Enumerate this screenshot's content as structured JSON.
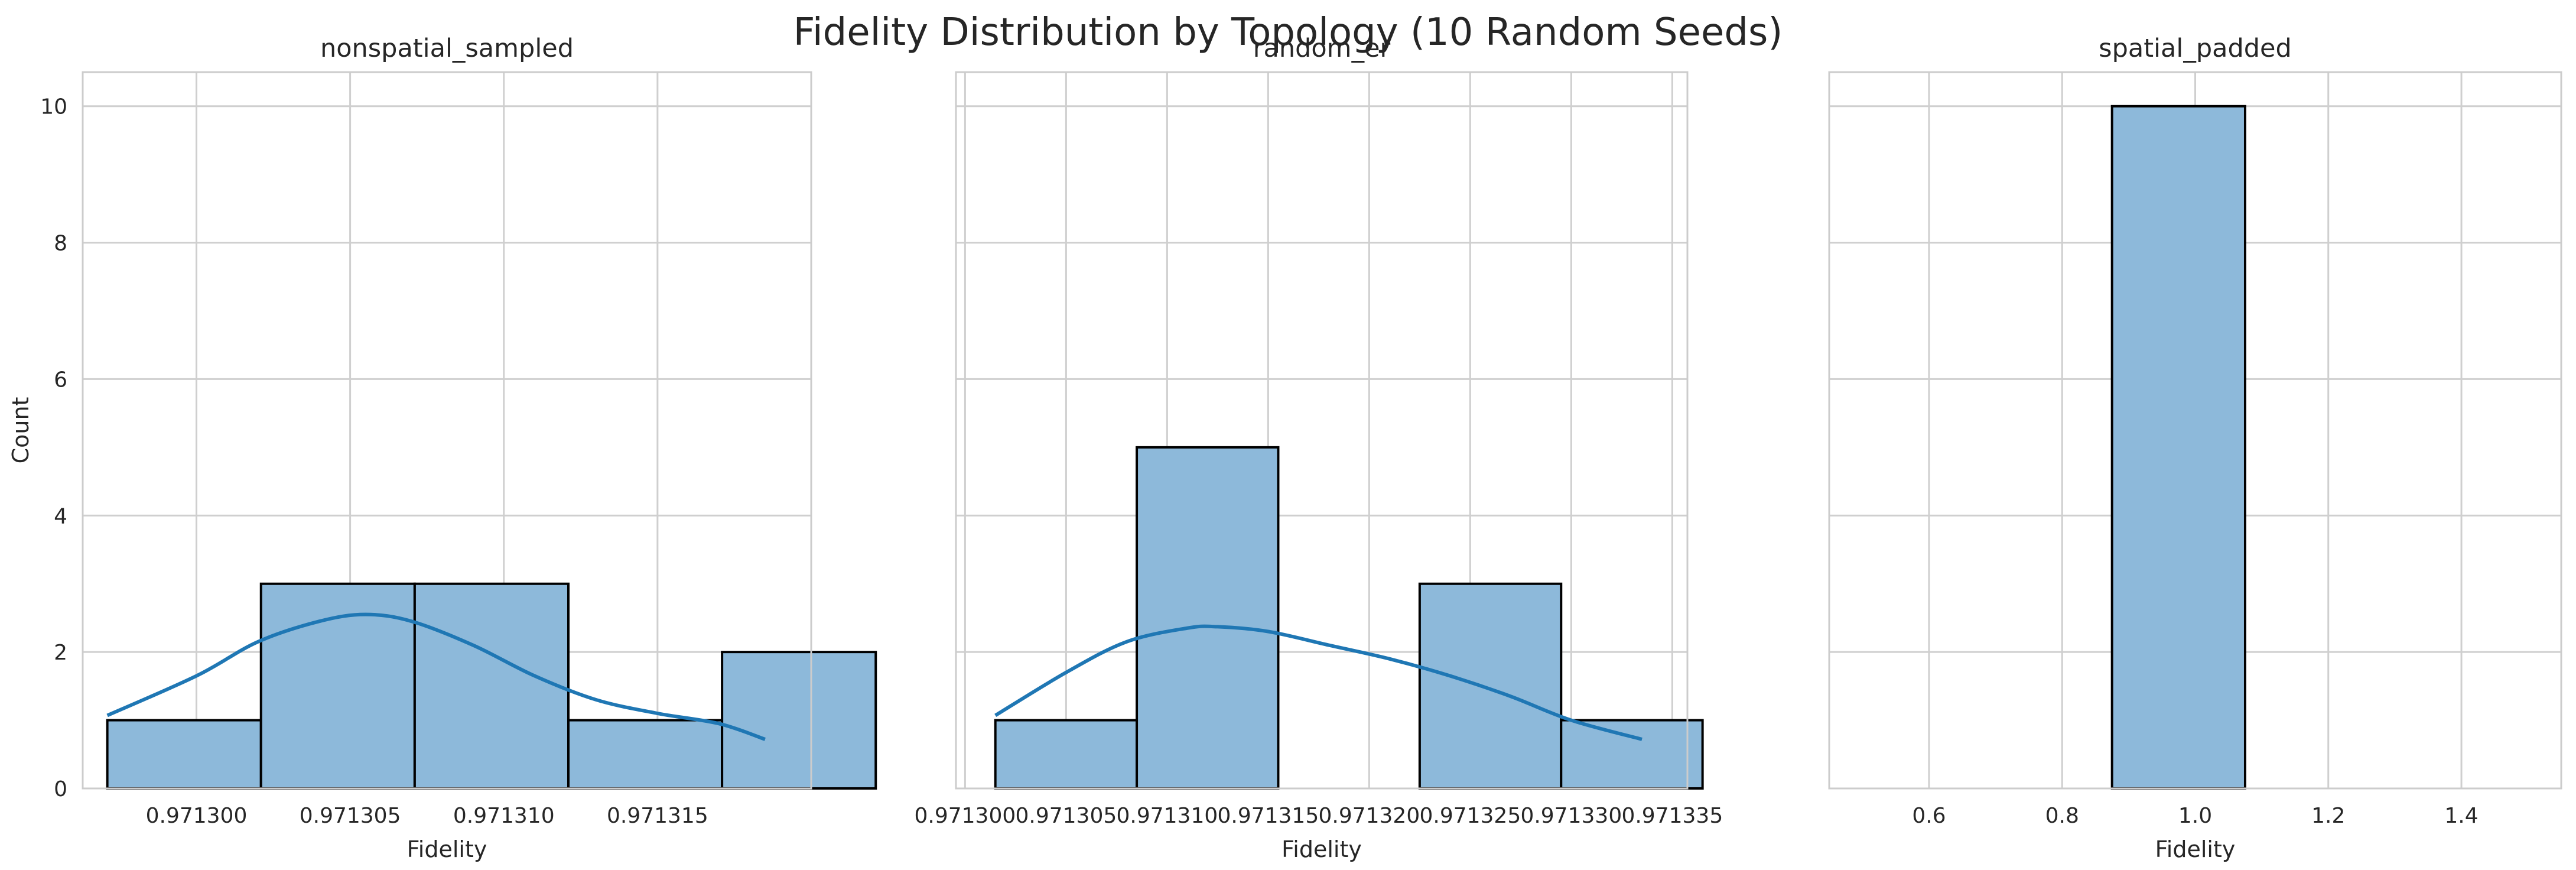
{
  "figure": {
    "title": "Fidelity Distribution by Topology (10 Random Seeds)"
  },
  "colors": {
    "bar_fill": "#8db9da",
    "bar_edge": "#000000",
    "kde_line": "#1f77b4",
    "grid": "#cfcfcf",
    "spine": "#cccccc",
    "text": "#262626"
  },
  "chart_data": [
    {
      "type": "bar",
      "title": "nonspatial_sampled",
      "xlabel": "Fidelity",
      "ylabel": "Count",
      "xlim": [
        0.9712963,
        0.97132
      ],
      "ylim": [
        0,
        10.5
      ],
      "xticks": [
        0.9713,
        0.971305,
        0.97131,
        0.971315
      ],
      "xtick_labels": [
        "0.971300",
        "0.971305",
        "0.971310",
        "0.971315"
      ],
      "yticks": [
        0,
        2,
        4,
        6,
        8,
        10
      ],
      "ytick_labels": [
        "0",
        "2",
        "4",
        "6",
        "8",
        "10"
      ],
      "bins": [
        {
          "x0": 0.9712971,
          "x1": 0.9713021,
          "count": 1
        },
        {
          "x0": 0.9713021,
          "x1": 0.9713071,
          "count": 3
        },
        {
          "x0": 0.9713071,
          "x1": 0.9713121,
          "count": 3
        },
        {
          "x0": 0.9713121,
          "x1": 0.9713171,
          "count": 1
        },
        {
          "x0": 0.9713171,
          "x1": 0.9713221,
          "count": 2
        }
      ],
      "kde": {
        "x": [
          0.9712971,
          0.9713,
          0.971302,
          0.971304,
          0.9713055,
          0.971307,
          0.971309,
          0.971311,
          0.971313,
          0.971315,
          0.971317,
          0.9713185
        ],
        "y": [
          1.07,
          1.65,
          2.15,
          2.45,
          2.55,
          2.45,
          2.1,
          1.65,
          1.3,
          1.1,
          0.95,
          0.72
        ]
      },
      "grid": true
    },
    {
      "type": "bar",
      "title": "random_er",
      "xlabel": "Fidelity",
      "ylabel": "",
      "xlim": [
        0.97129955,
        0.97133575
      ],
      "ylim": [
        0,
        10.5
      ],
      "xticks": [
        0.9713,
        0.971305,
        0.97131,
        0.971315,
        0.97132,
        0.971325,
        0.97133,
        0.971335
      ],
      "xtick_labels": [
        "0.971300",
        "0.971305",
        "0.971310",
        "0.971315",
        "0.971320",
        "0.971325",
        "0.971330",
        "0.971335"
      ],
      "yticks": [
        0,
        2,
        4,
        6,
        8,
        10
      ],
      "ytick_labels": [],
      "bins": [
        {
          "x0": 0.9713015,
          "x1": 0.9713085,
          "count": 1
        },
        {
          "x0": 0.9713085,
          "x1": 0.9713155,
          "count": 5
        },
        {
          "x0": 0.9713155,
          "x1": 0.9713225,
          "count": 0
        },
        {
          "x0": 0.9713225,
          "x1": 0.9713295,
          "count": 3
        },
        {
          "x0": 0.9713295,
          "x1": 0.9713365,
          "count": 1
        }
      ],
      "kde": {
        "x": [
          0.9713015,
          0.971305,
          0.971308,
          0.971311,
          0.9713125,
          0.971315,
          0.971318,
          0.971321,
          0.971324,
          0.971327,
          0.97133,
          0.9713335
        ],
        "y": [
          1.07,
          1.7,
          2.15,
          2.35,
          2.37,
          2.3,
          2.1,
          1.9,
          1.65,
          1.35,
          1.0,
          0.72
        ]
      },
      "grid": true
    },
    {
      "type": "bar",
      "title": "spatial_padded",
      "xlabel": "Fidelity",
      "ylabel": "",
      "xlim": [
        0.45,
        1.55
      ],
      "ylim": [
        0,
        10.5
      ],
      "xticks": [
        0.6,
        0.8,
        1.0,
        1.2,
        1.4
      ],
      "xtick_labels": [
        "0.6",
        "0.8",
        "1.0",
        "1.2",
        "1.4"
      ],
      "yticks": [
        0,
        2,
        4,
        6,
        8,
        10
      ],
      "ytick_labels": [],
      "bins": [
        {
          "x0": 0.875,
          "x1": 1.075,
          "count": 10
        }
      ],
      "kde": null,
      "grid": true
    }
  ]
}
